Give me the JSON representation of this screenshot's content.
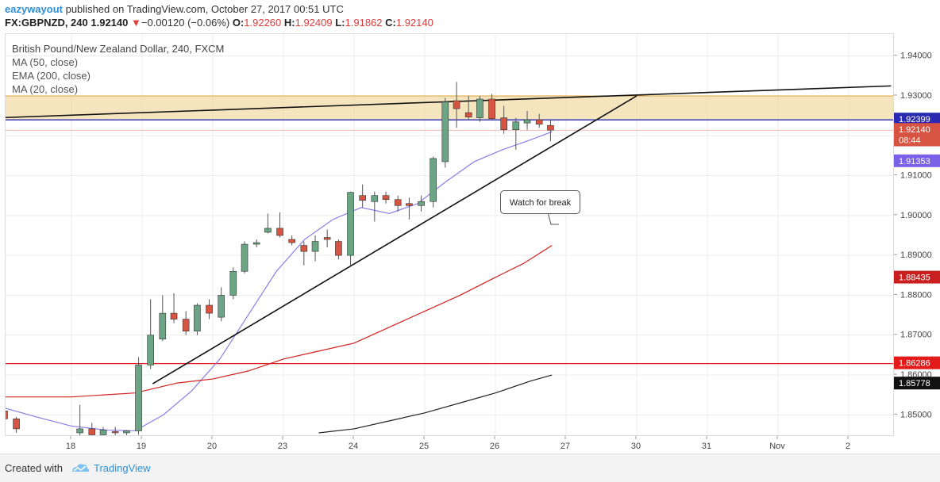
{
  "header": {
    "author": "eazywayout",
    "published_text": " published on TradingView.com, October 27, 2017 00:51 UTC",
    "symbol": "FX:GBPNZD, 240",
    "last": "1.92140",
    "change_arrow": "▼",
    "change": "−0.00120 (−0.06%)",
    "o_label": "O:",
    "o_value": "1.92260",
    "h_label": "H:",
    "h_value": "1.92409",
    "l_label": "L:",
    "l_value": "1.91862",
    "c_label": "C:",
    "c_value": "1.92140"
  },
  "legend": {
    "title": "British Pound/New Zealand Dollar, 240, FXCM",
    "items": [
      "MA (50, close)",
      "EMA (200, close)",
      "MA (20, close)"
    ]
  },
  "annotation": {
    "text": "Watch for break"
  },
  "footer": {
    "created_with": "Created with",
    "brand": "TradingView"
  },
  "colors": {
    "up_candle": "#6ba583",
    "down_candle": "#d75442",
    "wick": "#555555",
    "ma20": "#8a7ee8",
    "ma50": "#d32020",
    "ema200": "#222222",
    "support_red": "#e31b1b",
    "zone_fill": "#f2dcaa",
    "zone_border": "#d9a441",
    "blue_level": "#2a2ab0",
    "trendline": "#111111"
  },
  "chart_data": {
    "type": "candlestick",
    "title": "British Pound/New Zealand Dollar, 240, FXCM",
    "ylim": [
      1.8445,
      1.9455
    ],
    "y_ticks": [
      "1.85000",
      "1.86000",
      "1.87000",
      "1.88000",
      "1.89000",
      "1.90000",
      "1.91000",
      "1.92000",
      "1.93000",
      "1.94000"
    ],
    "x_ticks": [
      {
        "label": "18",
        "day": 18
      },
      {
        "label": "19",
        "day": 19
      },
      {
        "label": "20",
        "day": 20
      },
      {
        "label": "23",
        "day": 21
      },
      {
        "label": "24",
        "day": 22
      },
      {
        "label": "25",
        "day": 23
      },
      {
        "label": "26",
        "day": 24
      },
      {
        "label": "27",
        "day": 25
      },
      {
        "label": "30",
        "day": 26
      },
      {
        "label": "31",
        "day": 27
      },
      {
        "label": "Nov",
        "day": 28
      },
      {
        "label": "2",
        "day": 29
      }
    ],
    "day_ref": {
      "day": 18,
      "x": 0
    },
    "candles": [
      {
        "t": 17.05,
        "o": 1.851,
        "h": 1.8525,
        "l": 1.8475,
        "c": 1.849
      },
      {
        "t": 17.22,
        "o": 1.849,
        "h": 1.8495,
        "l": 1.8455,
        "c": 1.8465
      },
      {
        "t": 18.12,
        "o": 1.8455,
        "h": 1.8525,
        "l": 1.844,
        "c": 1.8465
      },
      {
        "t": 18.29,
        "o": 1.8465,
        "h": 1.848,
        "l": 1.8445,
        "c": 1.845
      },
      {
        "t": 18.45,
        "o": 1.845,
        "h": 1.847,
        "l": 1.844,
        "c": 1.8462
      },
      {
        "t": 18.62,
        "o": 1.8458,
        "h": 1.847,
        "l": 1.8445,
        "c": 1.8455
      },
      {
        "t": 18.78,
        "o": 1.8455,
        "h": 1.8462,
        "l": 1.8445,
        "c": 1.846
      },
      {
        "t": 18.95,
        "o": 1.846,
        "h": 1.8645,
        "l": 1.845,
        "c": 1.8625
      },
      {
        "t": 19.12,
        "o": 1.8625,
        "h": 1.879,
        "l": 1.8615,
        "c": 1.87
      },
      {
        "t": 19.29,
        "o": 1.869,
        "h": 1.88,
        "l": 1.8685,
        "c": 1.8755
      },
      {
        "t": 19.45,
        "o": 1.8755,
        "h": 1.8805,
        "l": 1.873,
        "c": 1.874
      },
      {
        "t": 19.62,
        "o": 1.874,
        "h": 1.876,
        "l": 1.87,
        "c": 1.871
      },
      {
        "t": 19.78,
        "o": 1.871,
        "h": 1.878,
        "l": 1.87,
        "c": 1.8775
      },
      {
        "t": 19.95,
        "o": 1.8775,
        "h": 1.879,
        "l": 1.874,
        "c": 1.8755
      },
      {
        "t": 20.12,
        "o": 1.8745,
        "h": 1.882,
        "l": 1.8735,
        "c": 1.88
      },
      {
        "t": 20.29,
        "o": 1.88,
        "h": 1.887,
        "l": 1.879,
        "c": 1.886
      },
      {
        "t": 20.45,
        "o": 1.886,
        "h": 1.8935,
        "l": 1.8855,
        "c": 1.8928
      },
      {
        "t": 20.62,
        "o": 1.8928,
        "h": 1.894,
        "l": 1.892,
        "c": 1.8932
      },
      {
        "t": 20.78,
        "o": 1.8958,
        "h": 1.9005,
        "l": 1.8955,
        "c": 1.8968
      },
      {
        "t": 20.95,
        "o": 1.8968,
        "h": 1.9008,
        "l": 1.8945,
        "c": 1.895
      },
      {
        "t": 21.12,
        "o": 1.894,
        "h": 1.895,
        "l": 1.8925,
        "c": 1.8932
      },
      {
        "t": 21.29,
        "o": 1.8925,
        "h": 1.8935,
        "l": 1.8875,
        "c": 1.891
      },
      {
        "t": 21.45,
        "o": 1.891,
        "h": 1.895,
        "l": 1.8885,
        "c": 1.8935
      },
      {
        "t": 21.62,
        "o": 1.8945,
        "h": 1.8965,
        "l": 1.892,
        "c": 1.894
      },
      {
        "t": 21.78,
        "o": 1.8935,
        "h": 1.894,
        "l": 1.889,
        "c": 1.89
      },
      {
        "t": 21.95,
        "o": 1.89,
        "h": 1.906,
        "l": 1.8875,
        "c": 1.9058
      },
      {
        "t": 22.12,
        "o": 1.905,
        "h": 1.9078,
        "l": 1.902,
        "c": 1.9038
      },
      {
        "t": 22.29,
        "o": 1.9035,
        "h": 1.906,
        "l": 1.8985,
        "c": 1.905
      },
      {
        "t": 22.45,
        "o": 1.905,
        "h": 1.906,
        "l": 1.903,
        "c": 1.904
      },
      {
        "t": 22.62,
        "o": 1.904,
        "h": 1.905,
        "l": 1.901,
        "c": 1.9025
      },
      {
        "t": 22.78,
        "o": 1.903,
        "h": 1.9045,
        "l": 1.899,
        "c": 1.9025
      },
      {
        "t": 22.95,
        "o": 1.9025,
        "h": 1.905,
        "l": 1.901,
        "c": 1.9035
      },
      {
        "t": 23.12,
        "o": 1.9035,
        "h": 1.9148,
        "l": 1.902,
        "c": 1.9143
      },
      {
        "t": 23.29,
        "o": 1.9135,
        "h": 1.9295,
        "l": 1.912,
        "c": 1.9285
      },
      {
        "t": 23.45,
        "o": 1.9288,
        "h": 1.9335,
        "l": 1.922,
        "c": 1.9268
      },
      {
        "t": 23.62,
        "o": 1.9258,
        "h": 1.93,
        "l": 1.924,
        "c": 1.9247
      },
      {
        "t": 23.78,
        "o": 1.9245,
        "h": 1.93,
        "l": 1.9235,
        "c": 1.9292
      },
      {
        "t": 23.95,
        "o": 1.9292,
        "h": 1.9305,
        "l": 1.924,
        "c": 1.9243
      },
      {
        "t": 24.12,
        "o": 1.9245,
        "h": 1.9275,
        "l": 1.9205,
        "c": 1.9215
      },
      {
        "t": 24.29,
        "o": 1.9215,
        "h": 1.9245,
        "l": 1.9165,
        "c": 1.9235
      },
      {
        "t": 24.45,
        "o": 1.9232,
        "h": 1.9262,
        "l": 1.9215,
        "c": 1.924
      },
      {
        "t": 24.62,
        "o": 1.924,
        "h": 1.9255,
        "l": 1.922,
        "c": 1.9229
      },
      {
        "t": 24.78,
        "o": 1.9226,
        "h": 1.9241,
        "l": 1.9186,
        "c": 1.9214
      }
    ],
    "series": [
      {
        "name": "MA (20, close)",
        "color": "#8a7ee8",
        "points": [
          [
            17.0,
            1.852
          ],
          [
            17.5,
            1.8495
          ],
          [
            18.0,
            1.8472
          ],
          [
            18.5,
            1.8462
          ],
          [
            18.9,
            1.846
          ],
          [
            19.3,
            1.85
          ],
          [
            19.7,
            1.856
          ],
          [
            20.1,
            1.864
          ],
          [
            20.5,
            1.875
          ],
          [
            20.9,
            1.886
          ],
          [
            21.3,
            1.894
          ],
          [
            21.7,
            1.899
          ],
          [
            22.1,
            1.902
          ],
          [
            22.5,
            1.9005
          ],
          [
            22.9,
            1.903
          ],
          [
            23.3,
            1.9085
          ],
          [
            23.7,
            1.9135
          ],
          [
            24.1,
            1.9165
          ],
          [
            24.5,
            1.919
          ],
          [
            24.8,
            1.921
          ]
        ]
      },
      {
        "name": "MA (50, close)",
        "color": "#d32020",
        "points": [
          [
            17.0,
            1.8545
          ],
          [
            18.0,
            1.8545
          ],
          [
            18.9,
            1.8555
          ],
          [
            19.5,
            1.858
          ],
          [
            20.0,
            1.859
          ],
          [
            20.5,
            1.861
          ],
          [
            21.0,
            1.864
          ],
          [
            21.5,
            1.866
          ],
          [
            22.0,
            1.868
          ],
          [
            22.5,
            1.872
          ],
          [
            23.0,
            1.876
          ],
          [
            23.5,
            1.88
          ],
          [
            24.0,
            1.8845
          ],
          [
            24.4,
            1.888
          ],
          [
            24.8,
            1.8925
          ]
        ]
      },
      {
        "name": "EMA (200, close)",
        "color": "#222222",
        "points": [
          [
            21.5,
            1.8455
          ],
          [
            22.0,
            1.8465
          ],
          [
            22.5,
            1.8485
          ],
          [
            23.0,
            1.8505
          ],
          [
            23.5,
            1.853
          ],
          [
            24.0,
            1.8555
          ],
          [
            24.5,
            1.8585
          ],
          [
            24.8,
            1.86
          ]
        ]
      }
    ],
    "levels": [
      {
        "name": "support",
        "value": 1.86286,
        "color": "#e31b1b",
        "label": "1.86286"
      },
      {
        "name": "blue-level",
        "value": 1.92399,
        "color": "#2a2ab0",
        "label": "1.92399"
      }
    ],
    "zone": {
      "top": 1.93,
      "bottom": 1.924
    },
    "trendlines": [
      {
        "from": [
          16.95,
          1.9245
        ],
        "to": [
          29.6,
          1.9325
        ]
      },
      {
        "from": [
          19.15,
          1.8578
        ],
        "to": [
          26.0,
          1.93
        ]
      }
    ],
    "price_labels": [
      {
        "value": 1.92399,
        "text": "1.92399",
        "bg": "#2a2ab0",
        "fg": "#ffffff"
      },
      {
        "value": 1.9214,
        "text": "1.92140",
        "bg": "#d75442",
        "fg": "#ffffff"
      },
      {
        "value": 1.91875,
        "text": "08:44",
        "bg": "#d75442",
        "fg": "#ffffff"
      },
      {
        "value": 1.91353,
        "text": "1.91353",
        "bg": "#7b61e8",
        "fg": "#ffffff"
      },
      {
        "value": 1.88435,
        "text": "1.88435",
        "bg": "#c81f1f",
        "fg": "#ffffff"
      },
      {
        "value": 1.86286,
        "text": "1.86286",
        "bg": "#e31b1b",
        "fg": "#ffffff"
      },
      {
        "value": 1.85778,
        "text": "1.85778",
        "bg": "#111111",
        "fg": "#ffffff"
      }
    ]
  }
}
